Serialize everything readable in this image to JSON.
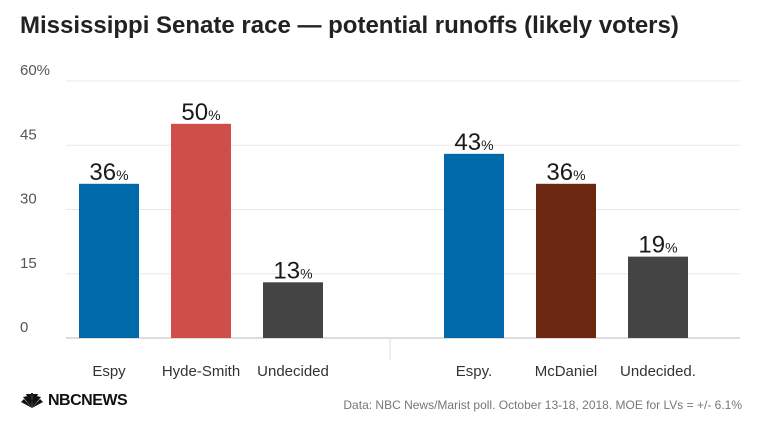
{
  "title": "Mississippi Senate race — potential runoffs (likely voters)",
  "source": "Data: NBC News/Marist poll. October 13-18, 2018. MOE for LVs = +/- 6.1%",
  "logo": {
    "text": "NBCNEWS",
    "icon": "nbc-peacock-icon"
  },
  "chart_data": {
    "type": "bar",
    "y_ticks": [
      "0",
      "15",
      "30",
      "45",
      "60%"
    ],
    "ylim": [
      0,
      60
    ],
    "grid": true,
    "value_suffix": "%",
    "groups": [
      {
        "bars": [
          {
            "category": "Espy",
            "value": 36,
            "color": "#0069aa"
          },
          {
            "category": "Hyde-Smith",
            "value": 50,
            "color": "#d04e4a"
          },
          {
            "category": "Undecided",
            "value": 13,
            "color": "#444444"
          }
        ]
      },
      {
        "bars": [
          {
            "category": "Espy.",
            "value": 43,
            "color": "#0069aa"
          },
          {
            "category": "McDaniel",
            "value": 36,
            "color": "#6b2710"
          },
          {
            "category": "Undecided.",
            "value": 19,
            "color": "#444444"
          }
        ]
      }
    ]
  }
}
